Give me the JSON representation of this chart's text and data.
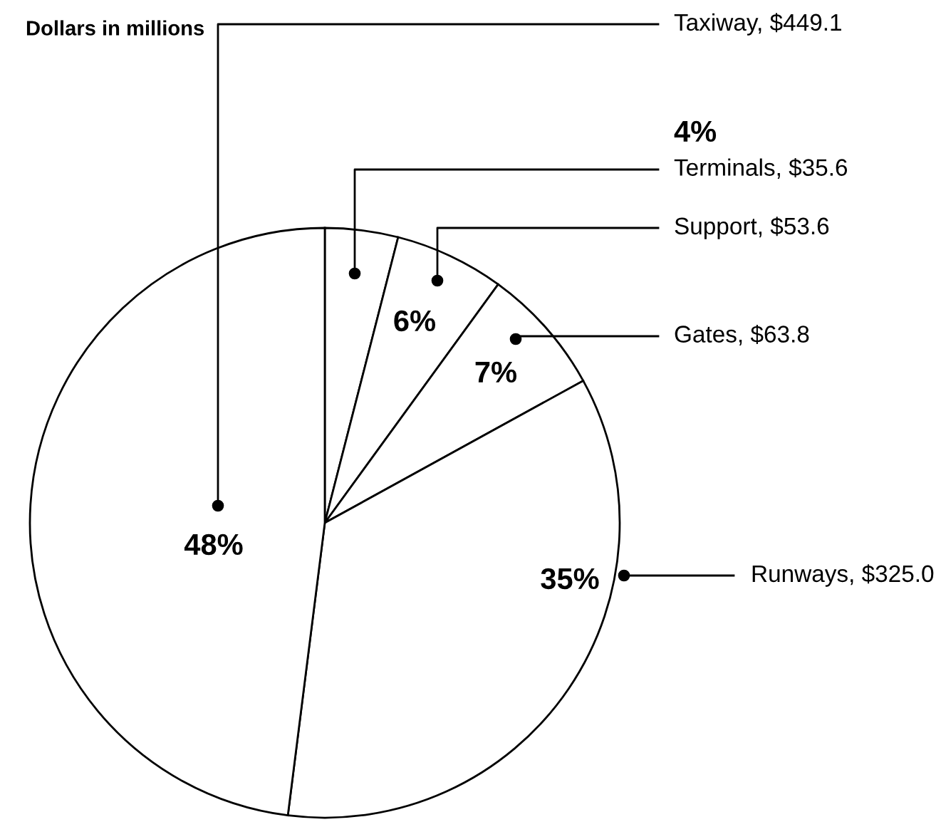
{
  "chart_data": {
    "type": "pie",
    "title": "Dollars in millions",
    "categories": [
      "Terminals, $35.6",
      "Support, $53.6",
      "Gates, $63.8",
      "Runways, $325.0",
      "Taxiway, $449.1"
    ],
    "values": [
      4,
      6,
      7,
      35,
      48
    ],
    "value_labels": [
      "4%",
      "6%",
      "7%",
      "35%",
      "48%"
    ],
    "colors": [
      "#ffffff",
      "#ffffff",
      "#ffffff",
      "#ffffff",
      "#ffffff"
    ]
  }
}
